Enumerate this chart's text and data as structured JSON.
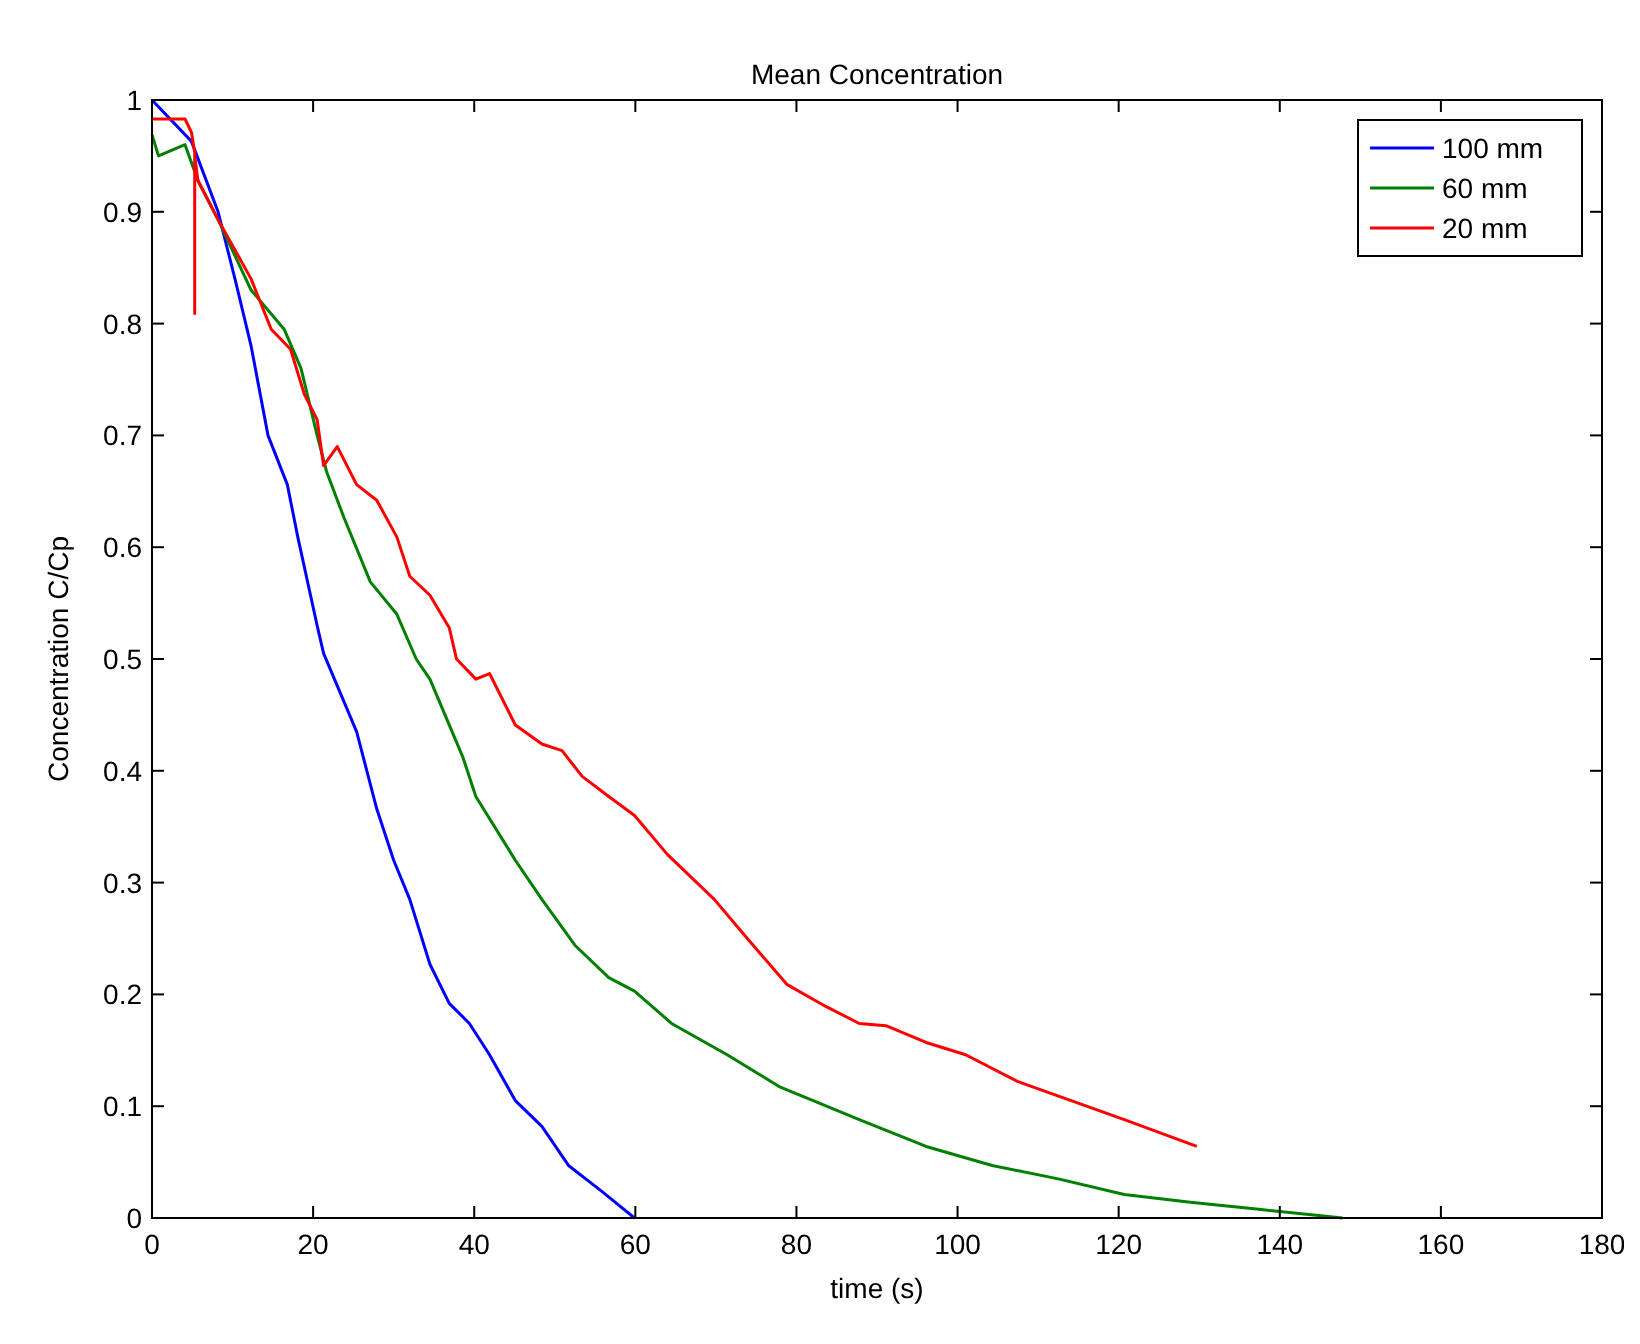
{
  "chart_data": {
    "type": "line",
    "title": "Mean Concentration",
    "xlabel": "time (s)",
    "ylabel": "Concentration C/Cp",
    "xlim": [
      0,
      180
    ],
    "xticks": [
      0,
      20,
      40,
      60,
      80,
      100,
      120,
      140,
      160,
      180
    ],
    "ylim": [
      0,
      1
    ],
    "yticks": [
      0,
      0.1,
      0.2,
      0.3,
      0.4,
      0.5,
      0.6,
      0.7,
      0.8,
      0.9,
      1
    ],
    "grid": false,
    "legend": "top right",
    "line_style": "solid",
    "series": [
      {
        "name": "100 mm",
        "color": "#0000ff",
        "x": [
          0,
          4.9,
          8.2,
          10.3,
          12.3,
          14.4,
          16.8,
          18.1,
          20.5,
          21.3,
          25.4,
          27.9,
          30,
          32,
          34.5,
          36.9,
          39.4,
          41.9,
          45.1,
          48.4,
          51.7,
          55.8,
          59.9
        ],
        "values": [
          1,
          0.963,
          0.9,
          0.84,
          0.78,
          0.7,
          0.656,
          0.609,
          0.53,
          0.505,
          0.435,
          0.366,
          0.32,
          0.285,
          0.227,
          0.192,
          0.174,
          0.146,
          0.105,
          0.082,
          0.047,
          0.024,
          0
        ]
      },
      {
        "name": "60 mm",
        "color": "#008000",
        "x": [
          0,
          0.8,
          4.1,
          5.7,
          8.2,
          12.3,
          16.4,
          18.5,
          20.5,
          21.7,
          23.8,
          27.1,
          30.4,
          32.8,
          34.5,
          38.6,
          40.2,
          45.1,
          48.4,
          52.5,
          56.7,
          59.9,
          64.5,
          71.4,
          78,
          87.8,
          96.1,
          104.3,
          112.5,
          120.7,
          128.9,
          137.1,
          147.8
        ],
        "values": [
          0.969,
          0.95,
          0.96,
          0.928,
          0.893,
          0.83,
          0.795,
          0.76,
          0.7,
          0.667,
          0.627,
          0.569,
          0.54,
          0.5,
          0.482,
          0.412,
          0.377,
          0.32,
          0.285,
          0.244,
          0.215,
          0.203,
          0.174,
          0.146,
          0.117,
          0.088,
          0.064,
          0.047,
          0.035,
          0.021,
          0.014,
          0.008,
          0
        ]
      },
      {
        "name": "20 mm",
        "color": "#ff0000",
        "x": [
          0,
          4.1,
          4.9,
          5.3,
          5.3,
          5.3,
          5.7,
          8.2,
          12.3,
          14.8,
          17.2,
          18.9,
          20.5,
          21.3,
          23,
          25.4,
          27.9,
          30.4,
          32,
          34.5,
          36.9,
          37.8,
          40.2,
          41.9,
          45.1,
          48.4,
          50.9,
          53.4,
          56.7,
          59.9,
          64,
          69.8,
          73.9,
          78.8,
          83.7,
          87.8,
          91.1,
          96.1,
          101,
          107.5,
          114.1,
          120.7,
          129.7
        ],
        "values": [
          0.983,
          0.983,
          0.971,
          0.953,
          0.809,
          0.95,
          0.928,
          0.893,
          0.84,
          0.795,
          0.777,
          0.737,
          0.714,
          0.673,
          0.69,
          0.656,
          0.642,
          0.609,
          0.574,
          0.557,
          0.528,
          0.5,
          0.482,
          0.487,
          0.441,
          0.424,
          0.418,
          0.395,
          0.377,
          0.36,
          0.325,
          0.285,
          0.25,
          0.209,
          0.189,
          0.174,
          0.172,
          0.157,
          0.146,
          0.122,
          0.105,
          0.088,
          0.064
        ]
      }
    ]
  }
}
